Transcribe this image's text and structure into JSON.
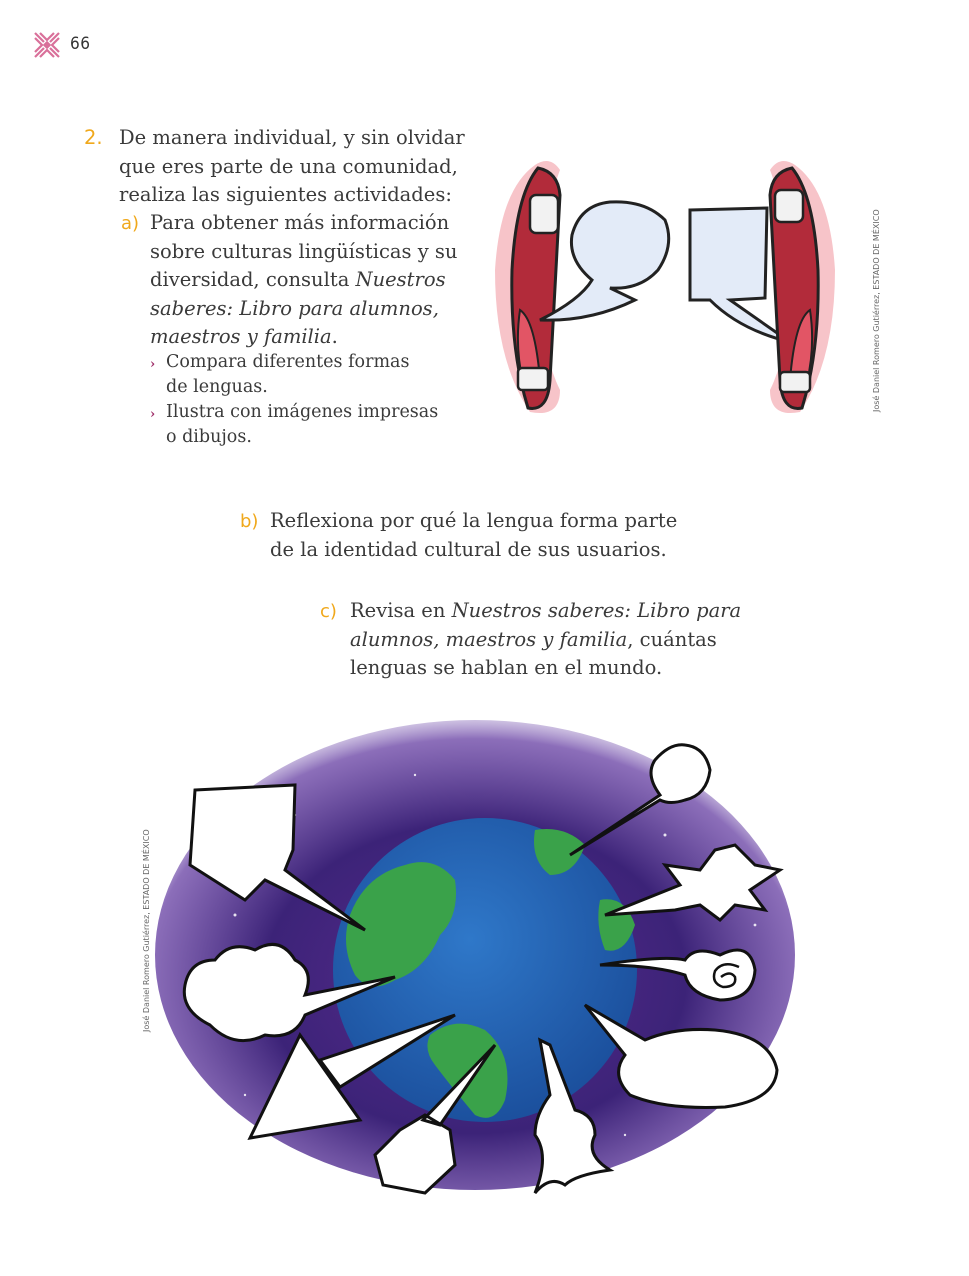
{
  "header": {
    "page_number": "66"
  },
  "item2": {
    "number": "2.",
    "intro": "De manera individual, y sin olvidar que eres parte de una comunidad, realiza las siguientes actividades:",
    "intro_lines": [
      "De manera individual, y sin olvidar",
      "que eres parte de una comunidad,",
      "realiza las siguientes actividades:"
    ]
  },
  "item_a": {
    "letter": "a)",
    "line1": "Para obtener más información",
    "line2": "sobre culturas lingüísticas y su",
    "line3_plain": "diversidad, consulta ",
    "line3_italic": "Nuestros",
    "line4_italic": "saberes: Libro para alumnos,",
    "line5_italic": "maestros y familia",
    "line5_end": ".",
    "bullets": [
      {
        "line1": "Compara diferentes formas",
        "line2": "de lenguas."
      },
      {
        "line1": "Ilustra con imágenes impresas",
        "line2": "o dibujos."
      }
    ]
  },
  "item_b": {
    "letter": "b)",
    "line1": "Reflexiona por qué la lengua forma parte",
    "line2": "de la identidad cultural de sus usuarios."
  },
  "item_c": {
    "letter": "c)",
    "line1_plain": "Revisa en ",
    "line1_italic": "Nuestros saberes: Libro para",
    "line2_italic": "alumnos, maestros y familia",
    "line2_plain": ", cuántas",
    "line3": "lenguas se hablan en el mundo."
  },
  "credits": {
    "mouths": "José Daniel Romero Gutiérrez, ESTADO DE MÉXICO",
    "globe": "José Daniel Romero Gutiérrez, ESTADO DE MÉXICO"
  },
  "colors": {
    "accent": "#f0a81b",
    "bullet": "#a0326b",
    "logo": "#d9709a"
  }
}
